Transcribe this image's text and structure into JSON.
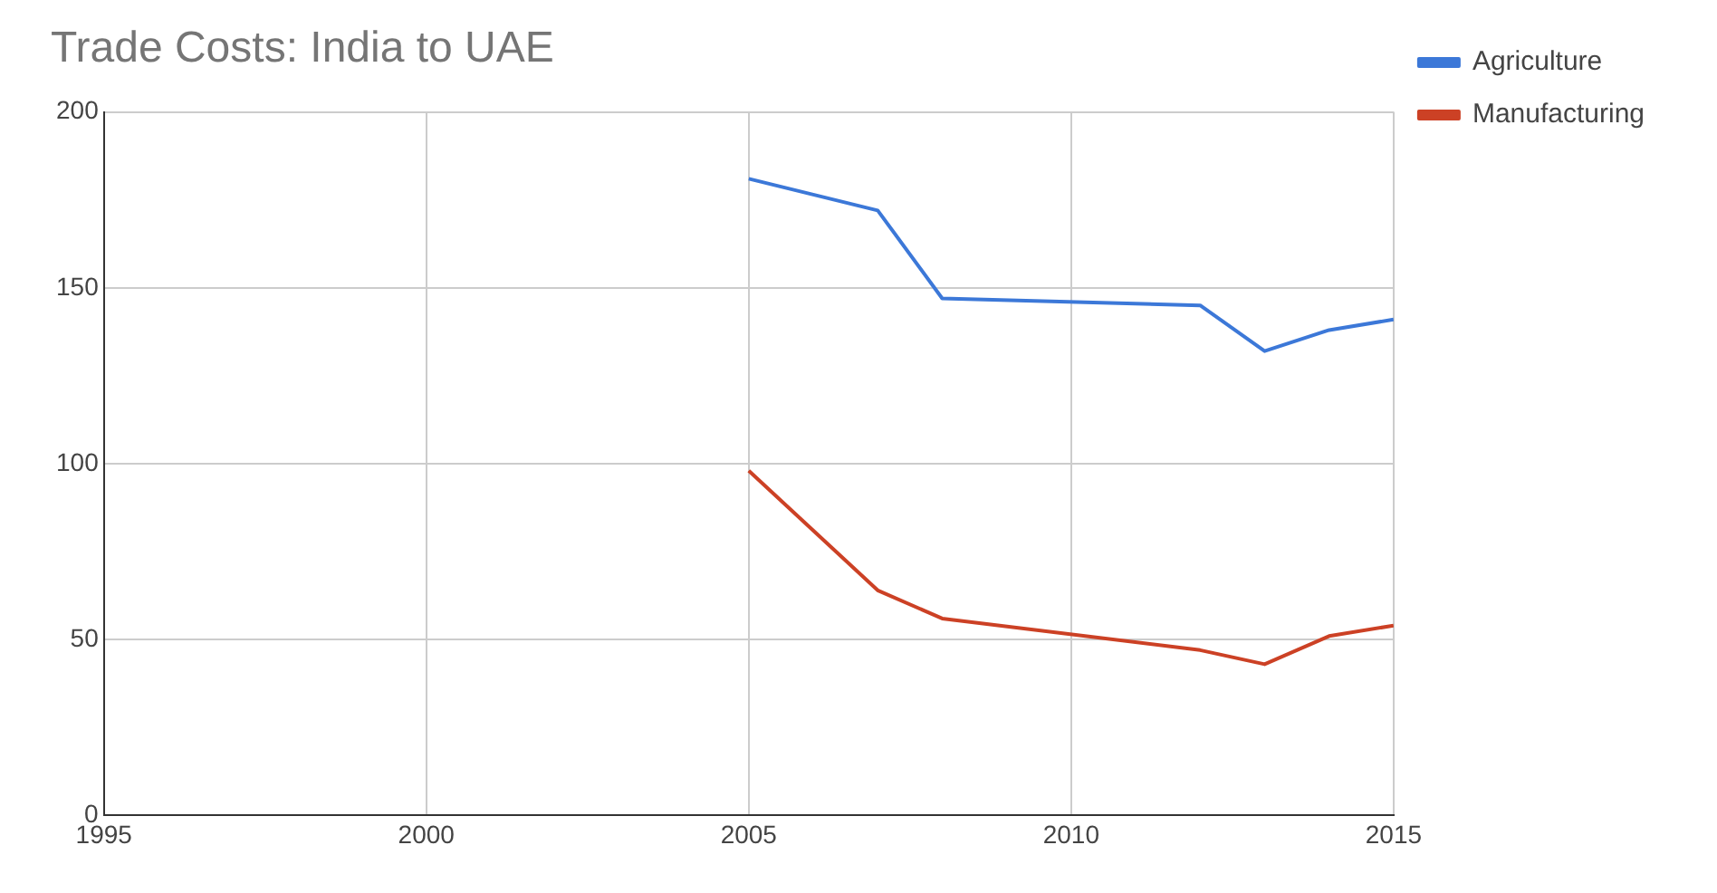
{
  "chart_data": {
    "type": "line",
    "title": "Trade Costs: India to UAE",
    "xlim": [
      1995,
      2015
    ],
    "xticks": [
      1995,
      2000,
      2005,
      2010,
      2015
    ],
    "ylim": [
      0,
      200
    ],
    "yticks": [
      0,
      50,
      100,
      150,
      200
    ],
    "grid": true,
    "legend": "top right",
    "series": [
      {
        "name": "Agriculture",
        "color": "#3c78d8",
        "x": [
          2005,
          2007,
          2008,
          2012,
          2013,
          2014,
          2015
        ],
        "values": [
          181,
          172,
          147,
          145,
          132,
          138,
          141
        ]
      },
      {
        "name": "Manufacturing",
        "color": "#cc4125",
        "x": [
          2005,
          2007,
          2008,
          2012,
          2013,
          2014,
          2015
        ],
        "values": [
          98,
          64,
          56,
          47,
          43,
          51,
          54
        ]
      }
    ]
  }
}
